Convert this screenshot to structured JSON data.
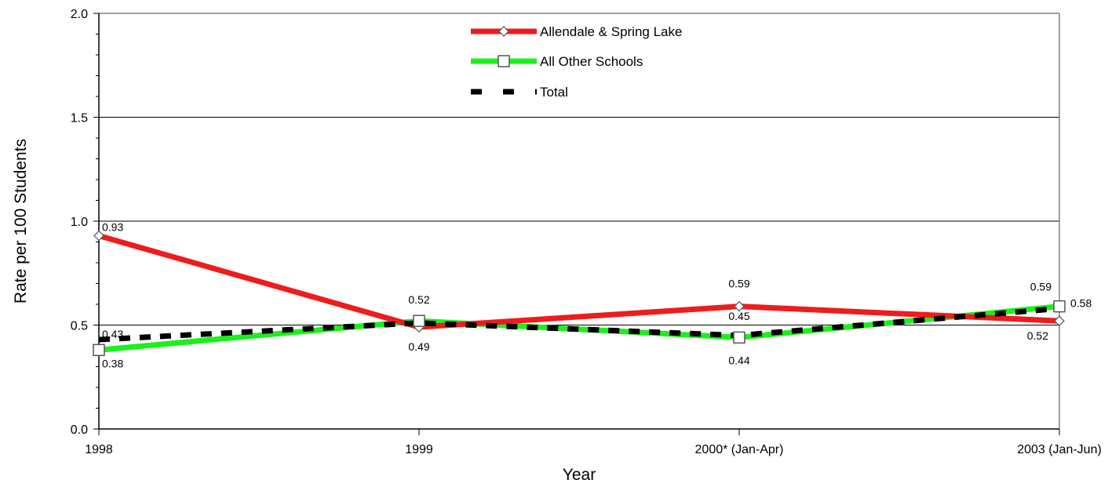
{
  "chart_data": {
    "type": "line",
    "categories": [
      "1998",
      "1999",
      "2000* (Jan-Apr)",
      "2003 (Jan-Jun)"
    ],
    "xlabel": "Year",
    "ylabel": "Rate per 100 Students",
    "ylim": [
      0,
      2.0
    ],
    "yticks": [
      "0.0",
      "0.5",
      "1.0",
      "1.5",
      "2.0"
    ],
    "grid": "horizontal major lines",
    "legend_position": "top-center",
    "series": [
      {
        "name": "Allendale & Spring Lake",
        "values": [
          0.93,
          0.49,
          0.59,
          0.52
        ],
        "labels": [
          "0.93",
          "0.49",
          "0.59",
          "0.52"
        ],
        "color": "#ee1c1c",
        "marker": "diamond",
        "dash": "solid"
      },
      {
        "name": "All Other Schools",
        "values": [
          0.38,
          0.52,
          0.44,
          0.59
        ],
        "labels": [
          "0.38",
          "0.52",
          "0.44",
          "0.59"
        ],
        "color": "#1cf01c",
        "marker": "square",
        "dash": "solid"
      },
      {
        "name": "Total",
        "values": [
          0.43,
          0.51,
          0.45,
          0.58
        ],
        "labels": [
          "0.43",
          "",
          "0.45",
          "0.58"
        ],
        "color": "#000000",
        "marker": "none",
        "dash": "dashed"
      }
    ]
  }
}
